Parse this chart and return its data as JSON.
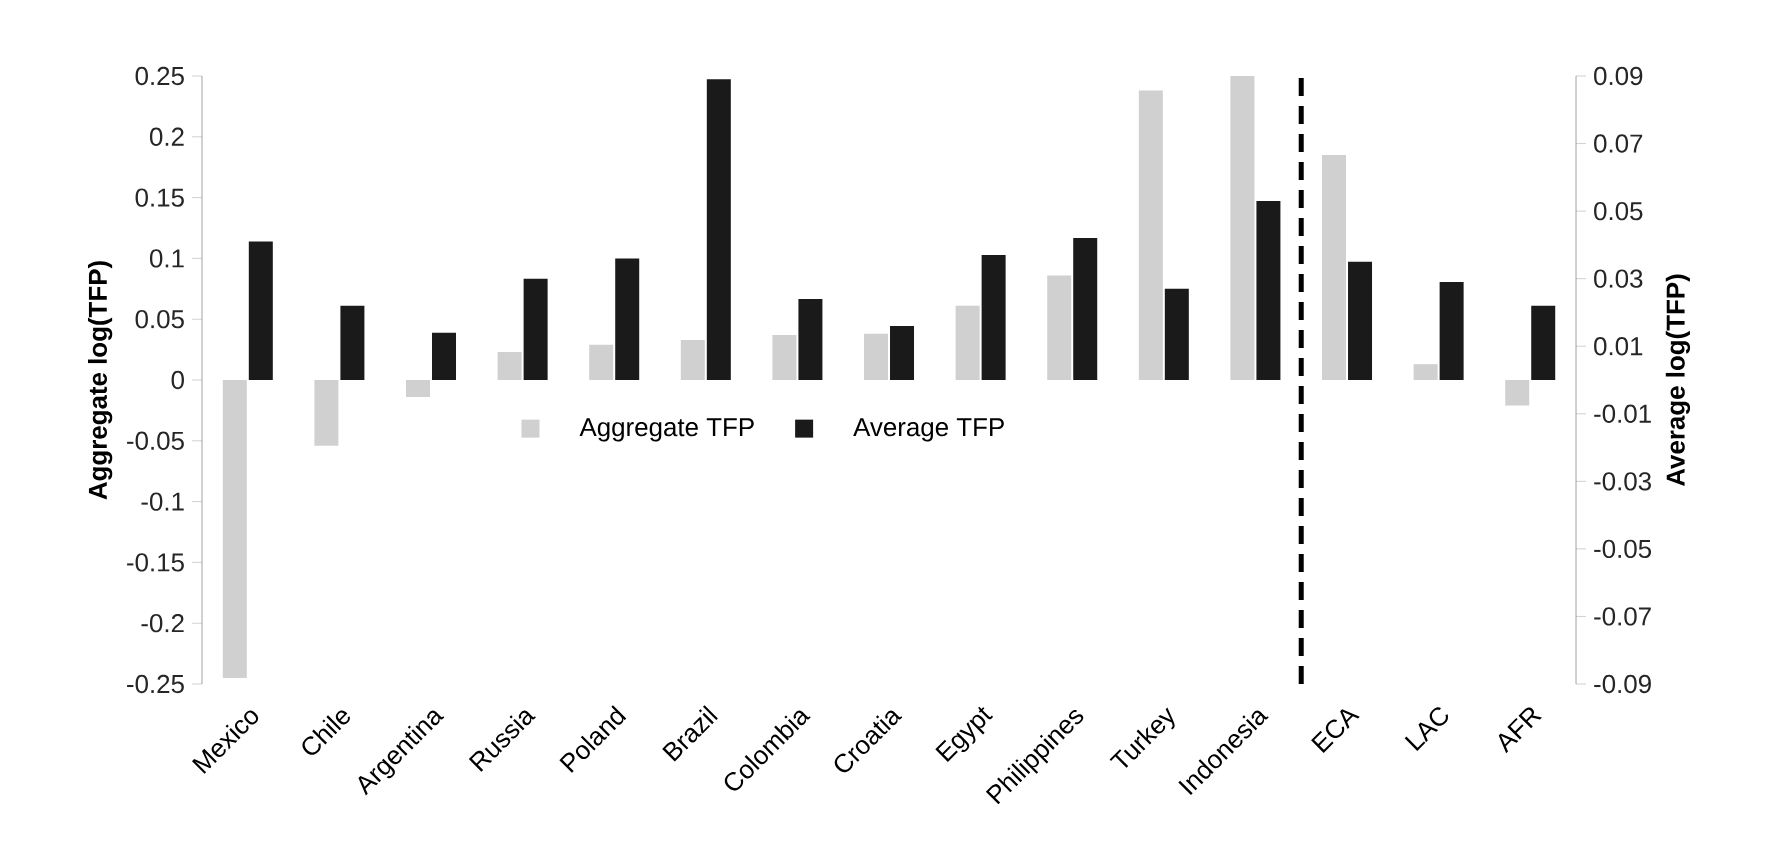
{
  "chart_data": {
    "type": "bar",
    "ylabel": "Aggregate log(TFP)",
    "y2label": "Average log(TFP)",
    "categories": [
      "Mexico",
      "Chile",
      "Argentina",
      "Russia",
      "Poland",
      "Brazil",
      "Colombia",
      "Croatia",
      "Egypt",
      "Philippines",
      "Turkey",
      "Indonesia",
      "ECA",
      "LAC",
      "AFR"
    ],
    "series": [
      {
        "name": "Aggregate TFP",
        "color": "#d0d0d0",
        "values": [
          -0.245,
          -0.054,
          -0.014,
          0.023,
          0.029,
          0.033,
          0.037,
          0.038,
          0.061,
          0.086,
          0.238,
          0.25,
          0.185,
          0.013,
          -0.021
        ]
      },
      {
        "name": "Average TFP",
        "color": "#1a1a1a",
        "axis": "y2",
        "values": [
          0.041,
          0.022,
          0.014,
          0.03,
          0.036,
          0.089,
          0.024,
          0.016,
          0.037,
          0.042,
          0.027,
          0.053,
          0.035,
          0.029,
          0.022
        ]
      }
    ],
    "ylim": [
      -0.25,
      0.25
    ],
    "yticks": [
      -0.25,
      -0.2,
      -0.15,
      -0.1,
      -0.05,
      0,
      0.05,
      0.1,
      0.15,
      0.2,
      0.25
    ],
    "y2lim": [
      -0.09,
      0.09
    ],
    "y2ticks": [
      -0.09,
      -0.07,
      -0.05,
      -0.03,
      -0.01,
      0.01,
      0.03,
      0.05,
      0.07,
      0.09
    ],
    "legend": "center",
    "grid": false
  }
}
